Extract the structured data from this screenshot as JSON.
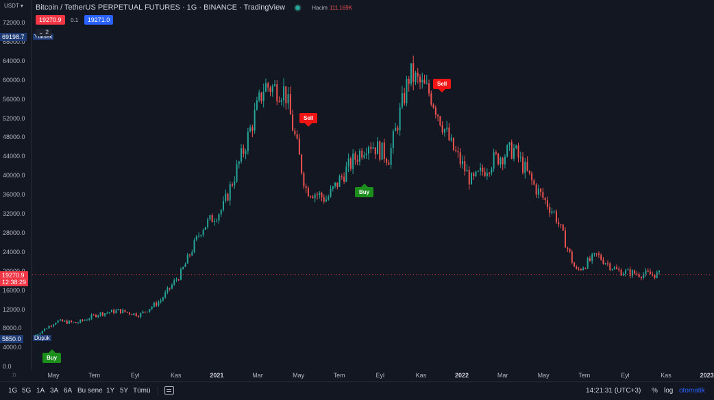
{
  "legend": {
    "title": "Bitcoin / TetherUS PERPETUAL FUTURES · 1G · BINANCE · TradingView",
    "volume_label": "Hacim",
    "volume_value": "111.169K"
  },
  "quote": {
    "bid": "19270.9",
    "spread": "0.1",
    "ask": "19271.0",
    "collapse_count": "2"
  },
  "price_scale": {
    "currency": "USDT",
    "ticks": [
      "72000.0",
      "68000.0",
      "64000.0",
      "60000.0",
      "56000.0",
      "52000.0",
      "48000.0",
      "44000.0",
      "40000.0",
      "36000.0",
      "32000.0",
      "28000.0",
      "24000.0",
      "20000.0",
      "16000.0",
      "12000.0",
      "8000.0",
      "4000.0",
      "0.0"
    ],
    "high_price": "69198.7",
    "high_label": "Yüksek",
    "last_price": "19270.9",
    "countdown": "12:38:29",
    "low_price": "5850.0",
    "low_label": "Düşük"
  },
  "time_axis": {
    "labels": [
      "May",
      "Tem",
      "Eyl",
      "Kas",
      "2021",
      "Mar",
      "May",
      "Tem",
      "Eyl",
      "Kas",
      "2022",
      "Mar",
      "May",
      "Tem",
      "Eyl",
      "Kas",
      "2023"
    ]
  },
  "signals": [
    {
      "type": "buy",
      "label": "Buy"
    },
    {
      "type": "sell",
      "label": "Sell"
    },
    {
      "type": "buy",
      "label": "Buy"
    },
    {
      "type": "sell",
      "label": "Sell"
    }
  ],
  "toolbar": {
    "ranges": [
      "1G",
      "5G",
      "1A",
      "3A",
      "6A",
      "Bu sene",
      "1Y",
      "5Y",
      "Tümü"
    ],
    "clock": "14:21:31 (UTC+3)",
    "percent": "%",
    "log": "log",
    "auto": "otomatik"
  },
  "colors": {
    "up": "#26a69a",
    "down": "#ef5350",
    "background": "#131722",
    "accent": "#2962ff"
  },
  "chart_data": {
    "type": "candlestick",
    "x": [
      "2020-04",
      "2020-05",
      "2020-06",
      "2020-07",
      "2020-08",
      "2020-09",
      "2020-10",
      "2020-11",
      "2020-12",
      "2021-01",
      "2021-02",
      "2021-03",
      "2021-04",
      "2021-05",
      "2021-06",
      "2021-07",
      "2021-08",
      "2021-09",
      "2021-10",
      "2021-11",
      "2021-12",
      "2022-01",
      "2022-02",
      "2022-03",
      "2022-04",
      "2022-05",
      "2022-06",
      "2022-07",
      "2022-08",
      "2022-09",
      "2022-10"
    ],
    "close": [
      6600,
      9500,
      9150,
      11000,
      11700,
      10800,
      13800,
      19600,
      29000,
      33100,
      45200,
      58800,
      57700,
      37300,
      35000,
      41500,
      47100,
      43800,
      61300,
      57000,
      46200,
      38500,
      43200,
      45500,
      37700,
      31800,
      19900,
      23300,
      20000,
      19400,
      19270.9
    ],
    "ylim": [
      0,
      74000
    ]
  }
}
